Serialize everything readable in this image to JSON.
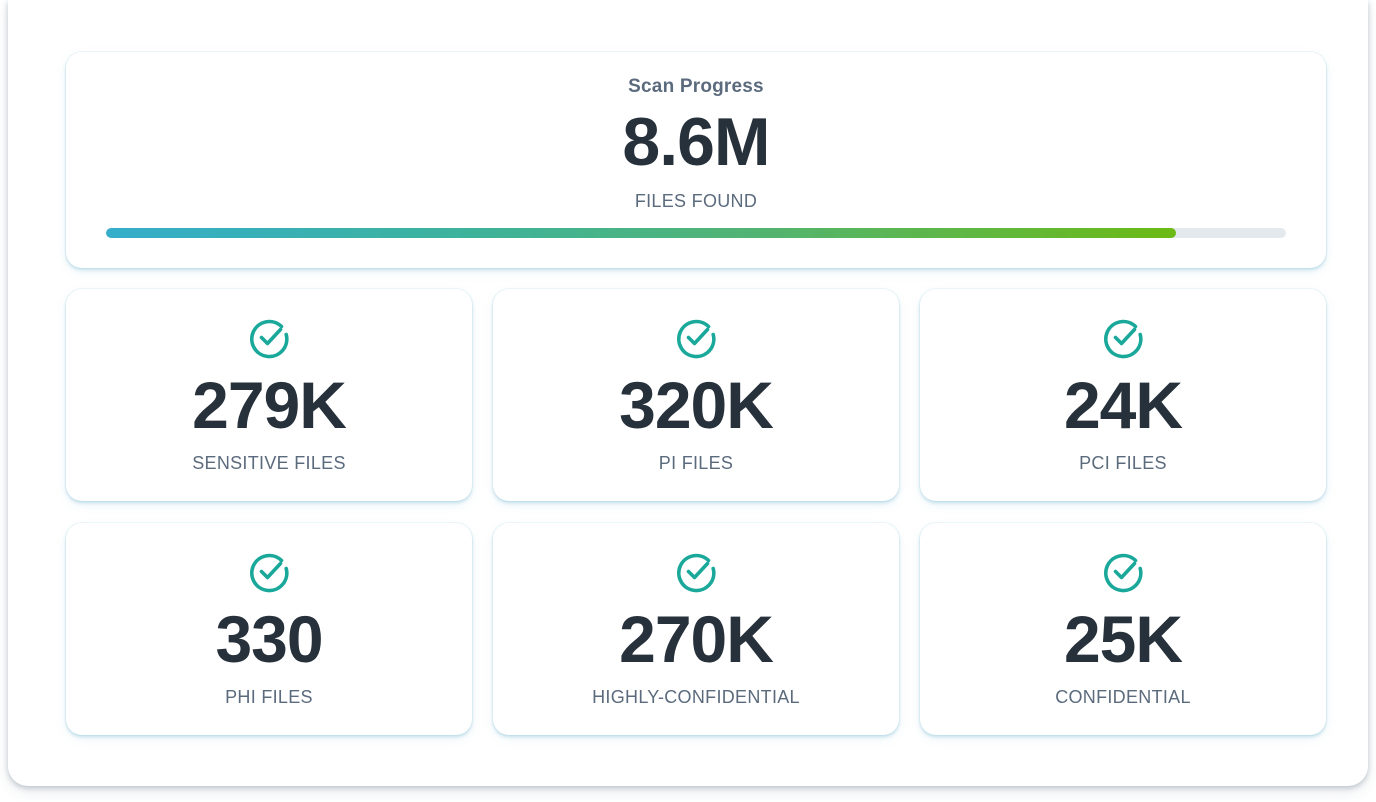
{
  "scan": {
    "title": "Scan Progress",
    "value": "8.6M",
    "caption": "FILES FOUND",
    "progress_fraction": 0.907
  },
  "stats": [
    {
      "value": "279K",
      "label": "SENSITIVE FILES",
      "icon": "check-circle-icon"
    },
    {
      "value": "320K",
      "label": "PI FILES",
      "icon": "check-circle-icon"
    },
    {
      "value": "24K",
      "label": "PCI FILES",
      "icon": "check-circle-icon"
    },
    {
      "value": "330",
      "label": "PHI FILES",
      "icon": "check-circle-icon"
    },
    {
      "value": "270K",
      "label": "HIGHLY-CONFIDENTIAL",
      "icon": "check-circle-icon"
    },
    {
      "value": "25K",
      "label": "CONFIDENTIAL",
      "icon": "check-circle-icon"
    }
  ],
  "colors": {
    "accent_check": "#1aa89a",
    "progress_start": "#35aecb",
    "progress_end": "#6cba14",
    "progress_track": "#e4e9ee",
    "value_text": "#27313b",
    "label_text": "#5b6b7d"
  }
}
